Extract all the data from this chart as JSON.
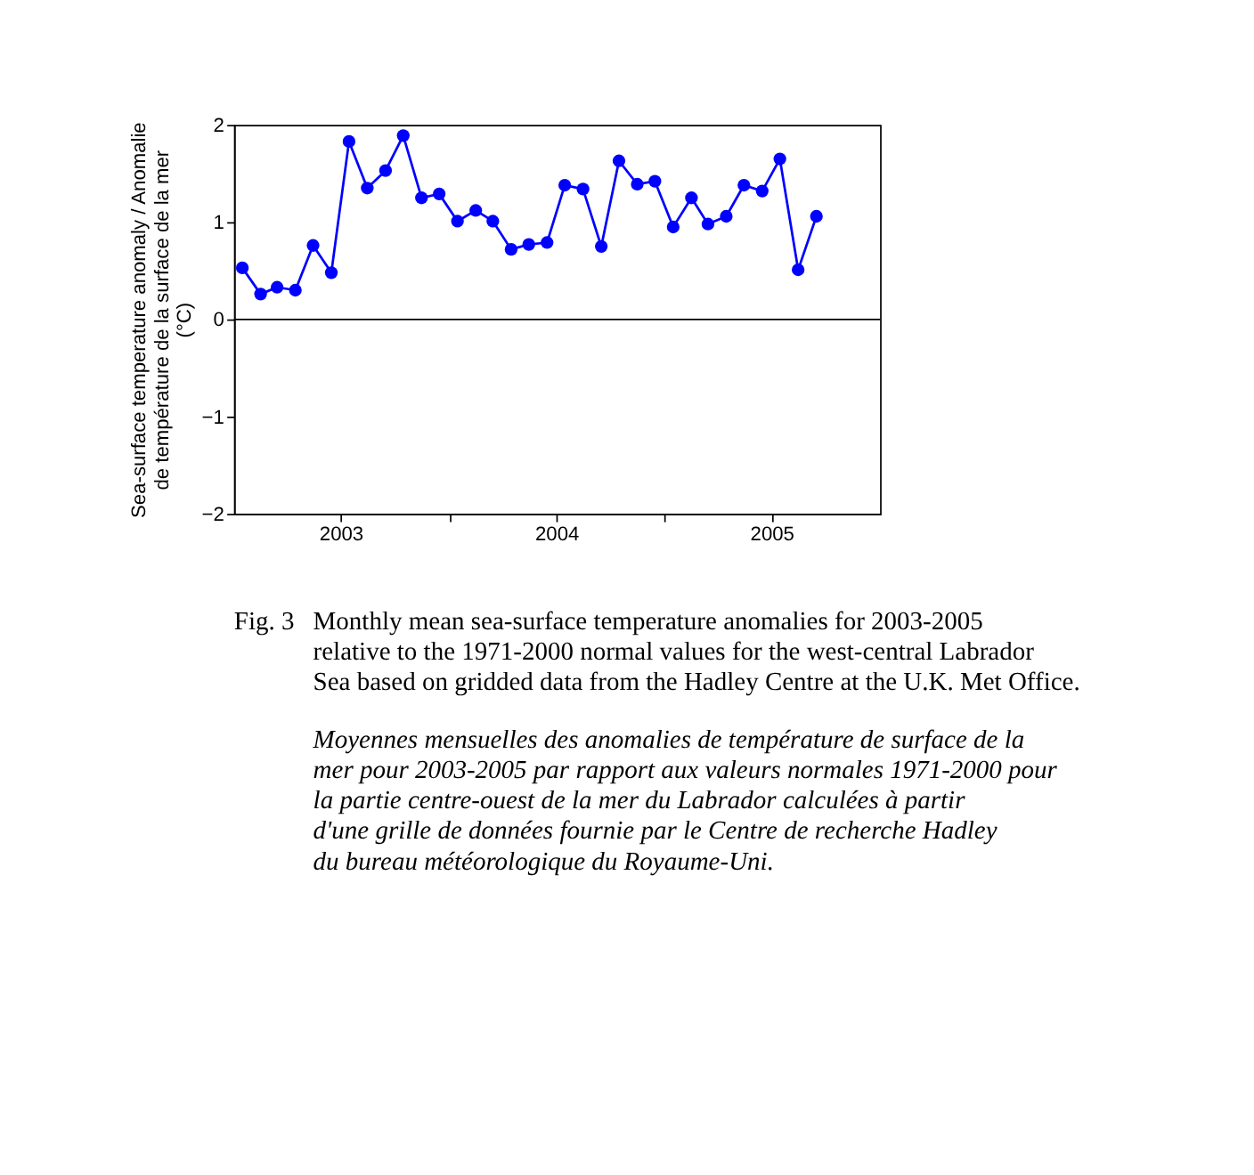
{
  "chart_data": {
    "type": "line",
    "ylabel": "Sea-surface temperature anomaly / Anomalie de température de la surface de la mer (°C)",
    "x": [
      "2003-01-15",
      "2003-02-15",
      "2003-03-15",
      "2003-04-15",
      "2003-05-15",
      "2003-06-15",
      "2003-07-15",
      "2003-08-15",
      "2003-09-15",
      "2003-10-15",
      "2003-11-15",
      "2003-12-15",
      "2004-01-15",
      "2004-02-15",
      "2004-03-15",
      "2004-04-15",
      "2004-05-15",
      "2004-06-15",
      "2004-07-15",
      "2004-08-15",
      "2004-09-15",
      "2004-10-15",
      "2004-11-15",
      "2004-12-15",
      "2005-01-15",
      "2005-02-15",
      "2005-03-15",
      "2005-04-15",
      "2005-05-15",
      "2005-06-15",
      "2005-07-15",
      "2005-08-15",
      "2005-09-15"
    ],
    "series": [
      {
        "color": "#0000ff",
        "values": [
          0.53,
          0.26,
          0.33,
          0.3,
          0.76,
          0.48,
          1.83,
          1.35,
          1.53,
          1.89,
          1.25,
          1.29,
          1.01,
          1.12,
          1.01,
          0.72,
          0.77,
          0.79,
          1.38,
          1.34,
          0.75,
          1.63,
          1.39,
          1.42,
          0.95,
          1.25,
          0.98,
          1.06,
          1.38,
          1.32,
          1.65,
          0.51,
          1.06
        ]
      }
    ],
    "marker": "circle",
    "line_style": "solid",
    "grid": false,
    "legend": false,
    "xlim": [
      "2003-01-01",
      "2006-01-01"
    ],
    "xticks": [
      {
        "value": "2003-07-01",
        "label": "2003"
      },
      {
        "value": "2004-01-01",
        "label": null
      },
      {
        "value": "2004-07-01",
        "label": "2004"
      },
      {
        "value": "2005-01-01",
        "label": null
      },
      {
        "value": "2005-07-01",
        "label": "2005"
      }
    ],
    "ylim": [
      -2,
      2
    ],
    "yticks": [
      -2,
      -1,
      0,
      1,
      2
    ],
    "ref_lines": [
      {
        "axis": "y",
        "value": 0,
        "label": null,
        "color": "#000000"
      }
    ],
    "annotations": [
      "Fig. 3  Monthly mean sea-surface temperature anomalies for 2003-2005 relative to the 1971-2000 normal values for the west-central Labrador Sea based on gridded data from the Hadley Centre at the U.K. Met Office.",
      "Moyennes mensuelles des anomalies de température de surface de la mer pour 2003-2005 par rapport aux valeurs normales 1971-2000 pour la partie centre-ouest de la mer du Labrador calculées à partir d'une grille de données fournie par le Centre de recherche Hadley du bureau météorologique du Royaume-Uni."
    ]
  }
}
